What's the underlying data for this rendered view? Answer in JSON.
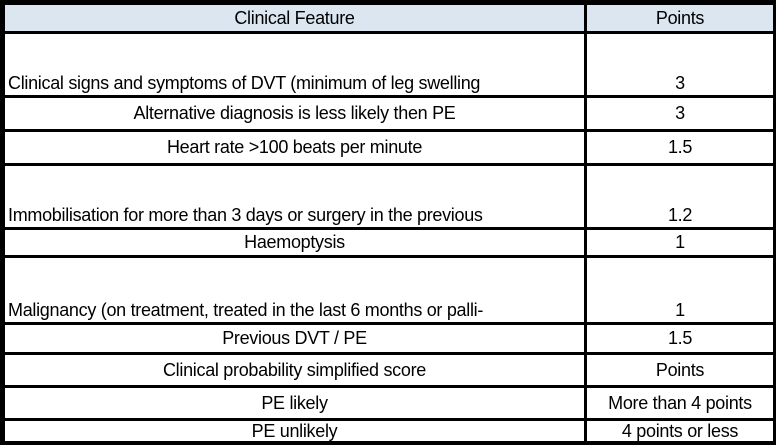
{
  "table": {
    "title_semantic": "Wells score for pulmonary embolism",
    "colors": {
      "header_bg": "#dce6f1",
      "grid_border": "#000000",
      "cell_bg": "#ffffff",
      "text": "#000000"
    },
    "header": {
      "feature": "Clinical Feature",
      "points": "Points"
    },
    "rows": [
      {
        "feature": "Clinical signs and symptoms of DVT (minimum of leg swelling",
        "points": "3"
      },
      {
        "feature": "Alternative diagnosis is less likely then PE",
        "points": "3"
      },
      {
        "feature": "Heart rate >100 beats per minute",
        "points": "1.5"
      },
      {
        "feature": "Immobilisation for more than 3 days or surgery in the previous",
        "points": "1.2"
      },
      {
        "feature": "Haemoptysis",
        "points": "1"
      },
      {
        "feature": "Malignancy (on treatment, treated in the last 6 months or palli-",
        "points": "1"
      },
      {
        "feature": "Previous DVT / PE",
        "points": "1.5"
      },
      {
        "feature": "Clinical probability simplified score",
        "points": "Points"
      },
      {
        "feature": "PE likely",
        "points": "More than 4 points"
      },
      {
        "feature": "PE unlikely",
        "points": "4 points or less"
      }
    ]
  }
}
